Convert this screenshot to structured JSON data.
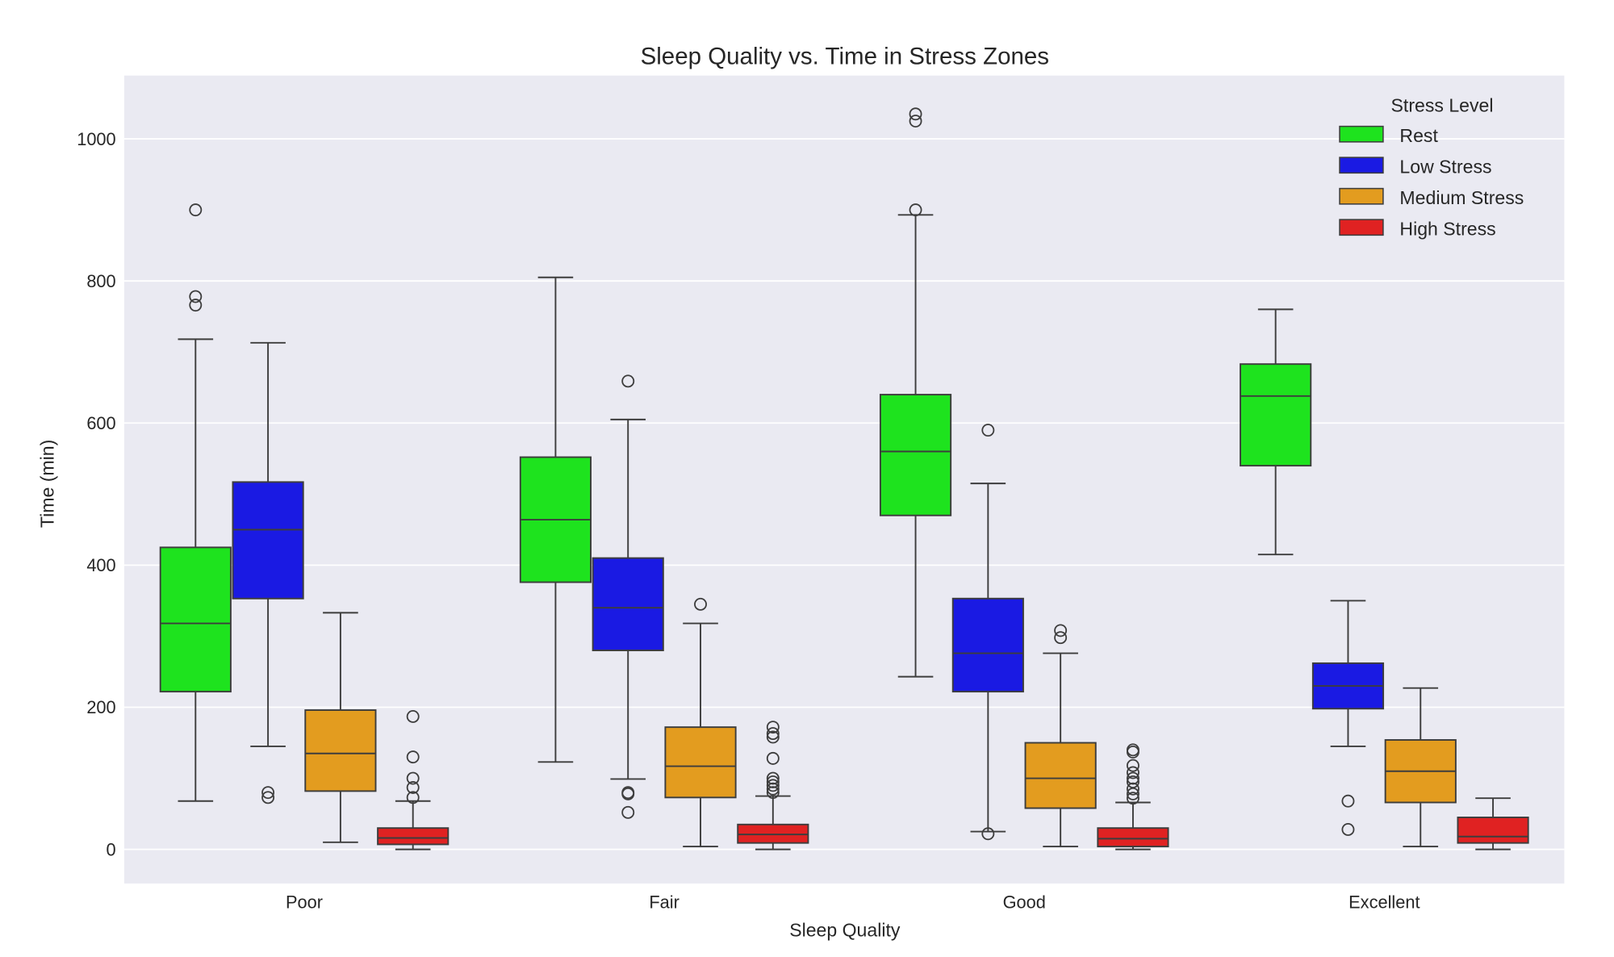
{
  "chart_data": {
    "type": "box",
    "title": "Sleep Quality vs. Time in Stress Zones",
    "xlabel": "Sleep Quality",
    "ylabel": "Time (min)",
    "categories": [
      "Poor",
      "Fair",
      "Good",
      "Excellent"
    ],
    "ylim": [
      -48,
      1089
    ],
    "yticks": [
      0,
      200,
      400,
      600,
      800,
      1000
    ],
    "grid": true,
    "background": "#eaeaf2",
    "legend": {
      "title": "Stress Level",
      "placement": "top-right"
    },
    "series": [
      {
        "name": "Rest",
        "color": "#1ee31e",
        "boxes": [
          {
            "whislo": 68,
            "q1": 222,
            "med": 318,
            "q3": 425,
            "whishi": 718,
            "fliers": [
              900,
              778,
              766
            ]
          },
          {
            "whislo": 123,
            "q1": 376,
            "med": 464,
            "q3": 552,
            "whishi": 805,
            "fliers": []
          },
          {
            "whislo": 243,
            "q1": 470,
            "med": 560,
            "q3": 640,
            "whishi": 893,
            "fliers": [
              1035,
              1025,
              900
            ]
          },
          {
            "whislo": 415,
            "q1": 540,
            "med": 638,
            "q3": 683,
            "whishi": 760,
            "fliers": []
          }
        ]
      },
      {
        "name": "Low Stress",
        "color": "#1a1ae3",
        "boxes": [
          {
            "whislo": 145,
            "q1": 353,
            "med": 450,
            "q3": 517,
            "whishi": 713,
            "fliers": [
              80,
              73
            ]
          },
          {
            "whislo": 99,
            "q1": 280,
            "med": 340,
            "q3": 410,
            "whishi": 605,
            "fliers": [
              659,
              80,
              78,
              52
            ]
          },
          {
            "whislo": 25,
            "q1": 222,
            "med": 276,
            "q3": 353,
            "whishi": 515,
            "fliers": [
              590,
              22
            ]
          },
          {
            "whislo": 145,
            "q1": 198,
            "med": 230,
            "q3": 262,
            "whishi": 350,
            "fliers": [
              68,
              28
            ]
          }
        ]
      },
      {
        "name": "Medium Stress",
        "color": "#e39c1f",
        "boxes": [
          {
            "whislo": 10,
            "q1": 82,
            "med": 135,
            "q3": 196,
            "whishi": 333,
            "fliers": []
          },
          {
            "whislo": 4,
            "q1": 73,
            "med": 117,
            "q3": 172,
            "whishi": 318,
            "fliers": [
              345
            ]
          },
          {
            "whislo": 4,
            "q1": 58,
            "med": 100,
            "q3": 150,
            "whishi": 276,
            "fliers": [
              308,
              298
            ]
          },
          {
            "whislo": 4,
            "q1": 66,
            "med": 110,
            "q3": 154,
            "whishi": 227,
            "fliers": []
          }
        ]
      },
      {
        "name": "High Stress",
        "color": "#e02222",
        "boxes": [
          {
            "whislo": 0,
            "q1": 7,
            "med": 16,
            "q3": 30,
            "whishi": 68,
            "fliers": [
              187,
              130,
              100,
              87,
              73
            ]
          },
          {
            "whislo": 0,
            "q1": 9,
            "med": 21,
            "q3": 35,
            "whishi": 75,
            "fliers": [
              172,
              163,
              158,
              128,
              100,
              95,
              90,
              85,
              80
            ]
          },
          {
            "whislo": 0,
            "q1": 4,
            "med": 15,
            "q3": 30,
            "whishi": 66,
            "fliers": [
              140,
              137,
              118,
              108,
              100,
              95,
              85,
              78,
              72
            ]
          },
          {
            "whislo": 0,
            "q1": 9,
            "med": 18,
            "q3": 45,
            "whishi": 72,
            "fliers": []
          }
        ]
      }
    ]
  }
}
